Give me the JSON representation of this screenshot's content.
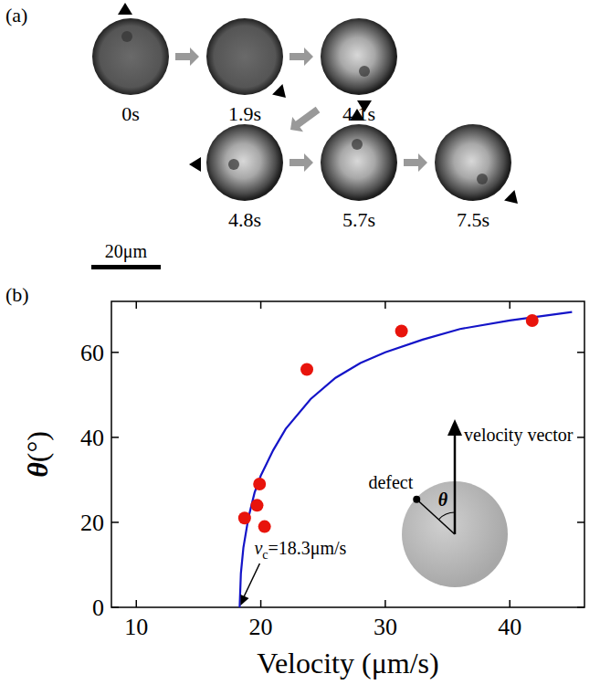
{
  "panel_a": {
    "letter": "(a)",
    "scale_bar": "20μm",
    "frames": [
      {
        "time": "0s"
      },
      {
        "time": "1.9s"
      },
      {
        "time": "4.1s"
      },
      {
        "time": "4.8s"
      },
      {
        "time": "5.7s"
      },
      {
        "time": "7.5s"
      }
    ]
  },
  "chart_data": {
    "type": "scatter",
    "letter": "(b)",
    "ylabel_symbol": "θ",
    "ylabel_unit": "(°)",
    "xlabel": "Velocity (μm/s)",
    "xlim": [
      8,
      46
    ],
    "xticks": [
      10,
      20,
      30,
      40
    ],
    "ylim": [
      0,
      72
    ],
    "yticks": [
      0,
      20,
      40,
      60
    ],
    "series": [
      {
        "type": "scatter",
        "color": "#e8140c",
        "marker": "circle",
        "x": [
          18.7,
          19.7,
          19.9,
          20.3,
          23.7,
          31.3,
          41.8
        ],
        "values": [
          21,
          24,
          29,
          19,
          56,
          65,
          67.5
        ]
      },
      {
        "type": "line",
        "color": "#1414c8",
        "line_style": "solid",
        "x": [
          18.3,
          18.4,
          18.6,
          19,
          19.5,
          20,
          21,
          22,
          24,
          26,
          28,
          30,
          33,
          36,
          40,
          45
        ],
        "values": [
          0,
          8,
          14,
          21,
          27,
          31,
          37,
          42,
          49,
          54,
          57.5,
          60,
          63,
          65.5,
          67.5,
          69.5
        ]
      }
    ],
    "annotation": {
      "symbol": "v",
      "sub": "c",
      "text": "=18.3μm/s",
      "x": 18.3,
      "y": 0
    },
    "inset": {
      "arrow_label": "velocity vector",
      "dot_label": "defect",
      "angle_label": "θ"
    }
  }
}
